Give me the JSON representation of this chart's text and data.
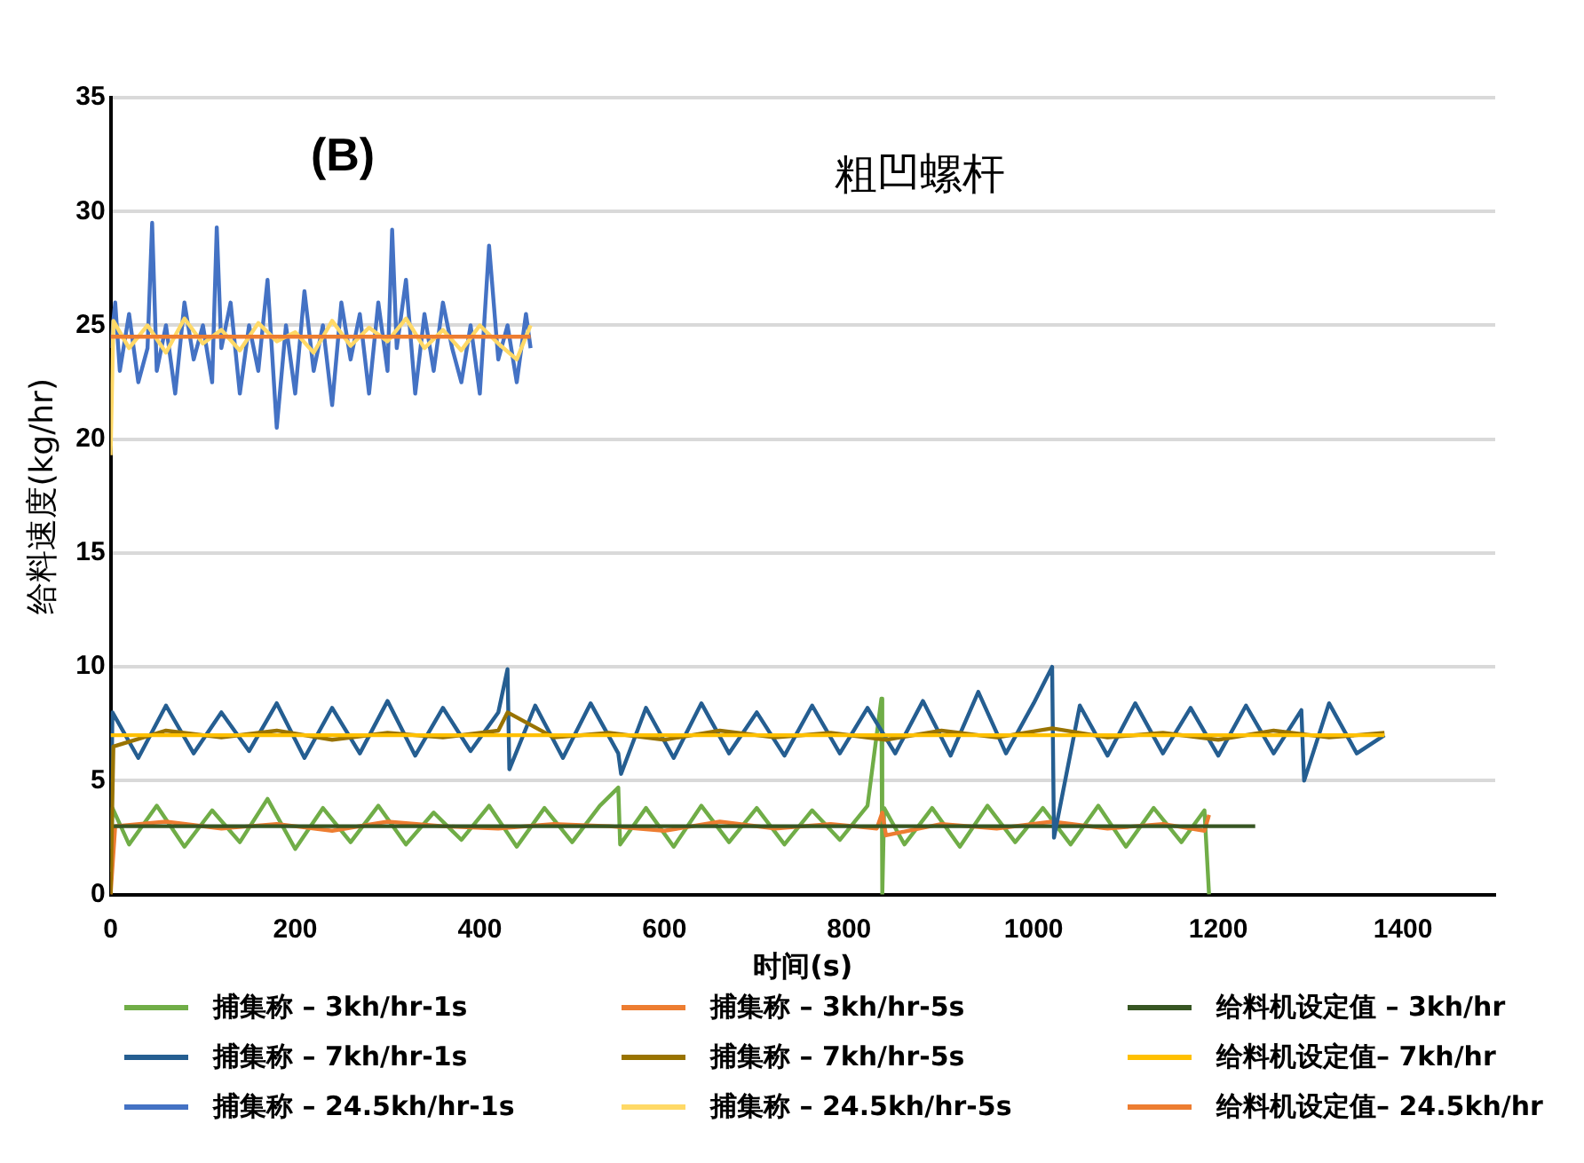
{
  "chart_data": {
    "type": "line",
    "title": "粗凹螺杆",
    "xlabel": "时间(s)",
    "ylabel": "给料速度(kg/hr)",
    "annotations": [
      "(B)"
    ],
    "xlim": [
      0,
      1500
    ],
    "xticks": [
      0,
      200,
      400,
      600,
      800,
      1000,
      1200,
      1400
    ],
    "ylim": [
      0,
      35
    ],
    "yticks": [
      0,
      5,
      10,
      15,
      20,
      25,
      30,
      35
    ],
    "grid": "y",
    "legend": "bottom",
    "marker": "none",
    "line_style": "solid",
    "series": [
      {
        "name": "捕集称 – 3kh/hr-1s",
        "color": "#70ad47",
        "x": [
          0,
          2,
          20,
          50,
          80,
          110,
          140,
          170,
          200,
          230,
          260,
          290,
          320,
          350,
          380,
          410,
          440,
          470,
          500,
          530,
          550,
          552,
          580,
          610,
          640,
          670,
          700,
          730,
          760,
          790,
          820,
          835,
          836,
          838,
          860,
          890,
          920,
          950,
          980,
          1010,
          1040,
          1070,
          1100,
          1130,
          1160,
          1185,
          1190
        ],
        "values": [
          1,
          3.8,
          2.2,
          3.9,
          2.1,
          3.7,
          2.3,
          4.2,
          2,
          3.8,
          2.3,
          3.9,
          2.2,
          3.6,
          2.4,
          3.9,
          2.1,
          3.8,
          2.3,
          3.9,
          4.7,
          2.2,
          3.8,
          2.1,
          3.9,
          2.3,
          3.8,
          2.2,
          3.7,
          2.4,
          3.9,
          8.6,
          0,
          3.8,
          2.2,
          3.8,
          2.1,
          3.9,
          2.3,
          3.8,
          2.2,
          3.9,
          2.1,
          3.8,
          2.3,
          3.7,
          0
        ]
      },
      {
        "name": "捕集称 – 3kh/hr-5s",
        "color": "#ed7d31",
        "x": [
          0,
          5,
          60,
          120,
          180,
          240,
          300,
          360,
          420,
          480,
          540,
          600,
          660,
          720,
          780,
          830,
          836,
          840,
          900,
          960,
          1020,
          1080,
          1140,
          1185,
          1190
        ],
        "values": [
          0,
          3,
          3.2,
          2.9,
          3.1,
          2.8,
          3.2,
          3,
          2.9,
          3.1,
          3,
          2.8,
          3.2,
          2.9,
          3.1,
          2.9,
          3.6,
          2.6,
          3.1,
          2.9,
          3.2,
          2.9,
          3.1,
          2.8,
          3.5
        ]
      },
      {
        "name": "给料机设定值 – 3kh/hr",
        "color": "#375623",
        "x": [
          0,
          1240
        ],
        "values": [
          3,
          3
        ]
      },
      {
        "name": "捕集称 – 7kh/hr-1s",
        "color": "#255e91",
        "x": [
          0,
          2,
          30,
          60,
          90,
          120,
          150,
          180,
          210,
          240,
          270,
          300,
          330,
          360,
          390,
          420,
          430,
          432,
          460,
          490,
          520,
          550,
          553,
          580,
          610,
          640,
          670,
          700,
          730,
          760,
          790,
          820,
          850,
          880,
          910,
          940,
          970,
          1000,
          1020,
          1022,
          1050,
          1080,
          1110,
          1140,
          1170,
          1200,
          1230,
          1260,
          1290,
          1293,
          1320,
          1350,
          1380
        ],
        "values": [
          2,
          8,
          6,
          8.3,
          6.2,
          8,
          6.3,
          8.4,
          6,
          8.2,
          6.2,
          8.5,
          6.1,
          8.2,
          6.3,
          8,
          9.9,
          5.5,
          8.3,
          6,
          8.4,
          6.2,
          5.3,
          8.2,
          6,
          8.4,
          6.2,
          8,
          6.1,
          8.3,
          6.2,
          8.2,
          6.2,
          8.5,
          6.1,
          8.9,
          6.2,
          8.4,
          10,
          2.5,
          8.3,
          6.1,
          8.4,
          6.2,
          8.2,
          6.1,
          8.3,
          6.2,
          8.1,
          5,
          8.4,
          6.2,
          7
        ]
      },
      {
        "name": "捕集称 – 7kh/hr-5s",
        "color": "#997300",
        "x": [
          0,
          3,
          60,
          120,
          180,
          240,
          300,
          360,
          420,
          430,
          480,
          540,
          600,
          660,
          720,
          780,
          840,
          900,
          960,
          1020,
          1080,
          1140,
          1200,
          1260,
          1320,
          1380
        ],
        "values": [
          0,
          6.5,
          7.2,
          6.9,
          7.2,
          6.8,
          7.1,
          6.9,
          7.2,
          8,
          6.9,
          7.1,
          6.8,
          7.2,
          6.9,
          7.1,
          6.8,
          7.2,
          6.9,
          7.3,
          6.9,
          7.1,
          6.8,
          7.2,
          6.9,
          7.1
        ]
      },
      {
        "name": "给料机设定值– 7kh/hr",
        "color": "#ffc000",
        "x": [
          0,
          1380
        ],
        "values": [
          7,
          7
        ]
      },
      {
        "name": "捕集称 – 24.5kh/hr-1s",
        "color": "#4472c4",
        "x": [
          0,
          5,
          10,
          20,
          30,
          40,
          45,
          50,
          60,
          70,
          80,
          90,
          100,
          110,
          115,
          120,
          130,
          140,
          150,
          160,
          170,
          180,
          190,
          200,
          210,
          220,
          230,
          240,
          250,
          260,
          270,
          280,
          290,
          300,
          305,
          310,
          320,
          330,
          340,
          350,
          360,
          370,
          380,
          390,
          400,
          410,
          420,
          430,
          440,
          450,
          455
        ],
        "values": [
          24,
          26,
          23,
          25.5,
          22.5,
          24,
          29.5,
          23,
          25,
          22,
          26,
          23.5,
          25,
          22.5,
          29.3,
          24,
          26,
          22,
          25,
          23,
          27,
          20.5,
          25,
          22,
          26.5,
          23,
          25,
          21.5,
          26,
          23.5,
          25.5,
          22,
          26,
          23,
          29.2,
          24,
          27,
          22,
          25.5,
          23,
          26,
          24,
          22.5,
          25,
          22,
          28.5,
          23.5,
          25,
          22.5,
          25.5,
          24
        ]
      },
      {
        "name": "捕集称 – 24.5kh/hr-5s",
        "color": "#ffd966",
        "x": [
          0,
          3,
          20,
          40,
          60,
          80,
          100,
          120,
          140,
          160,
          180,
          200,
          220,
          240,
          260,
          280,
          300,
          320,
          340,
          360,
          380,
          400,
          420,
          440,
          455
        ],
        "values": [
          19.3,
          25.2,
          24,
          25,
          23.8,
          25.3,
          24.2,
          24.8,
          23.9,
          25.1,
          24.3,
          24.7,
          23.8,
          25.2,
          24.1,
          24.9,
          24.3,
          25.3,
          24,
          24.8,
          23.9,
          25,
          24.2,
          23.5,
          25
        ]
      },
      {
        "name": "给料机设定值– 24.5kh/hr",
        "color": "#ed7d31",
        "x": [
          0,
          455
        ],
        "values": [
          24.5,
          24.5
        ]
      }
    ]
  }
}
